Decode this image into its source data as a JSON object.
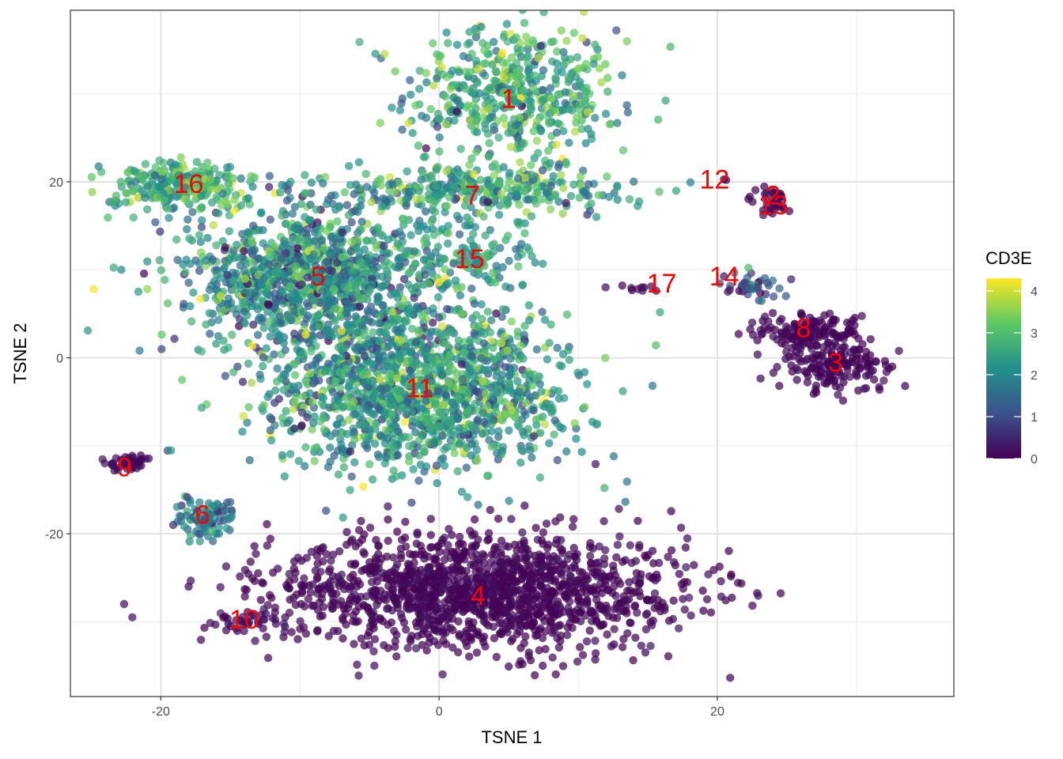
{
  "chart_data": {
    "type": "scatter",
    "title": "",
    "xlabel": "TSNE 1",
    "ylabel": "TSNE 2",
    "xlim": [
      -26.5,
      37
    ],
    "ylim": [
      -38.5,
      39.5
    ],
    "x_ticks": [
      -20,
      0,
      20
    ],
    "x_tick_labels": [
      "-20",
      "0",
      "20"
    ],
    "y_ticks": [
      -20,
      0,
      20
    ],
    "y_tick_labels": [
      "-20",
      "0",
      "20"
    ],
    "x_minor_ticks": [
      -10,
      10,
      30
    ],
    "y_minor_ticks": [
      -30,
      -10,
      10,
      30
    ],
    "grid": true,
    "color_variable": "CD3E",
    "colorbar": {
      "title": "CD3E",
      "min": 0,
      "max": 4.3,
      "ticks": [
        0,
        1,
        2,
        3,
        4
      ],
      "tick_labels": [
        "0",
        "1",
        "2",
        "3",
        "4"
      ],
      "palette": [
        "#440154",
        "#3b528b",
        "#21908c",
        "#5dc963",
        "#fde725"
      ],
      "placement": "right"
    },
    "label_color": "#ff0000",
    "clusters": [
      {
        "label": "1",
        "x": 5.2,
        "y": 30.0,
        "spread": [
          3.8,
          4.0
        ],
        "count": 500,
        "mean_expr": 2.6,
        "sd_expr": 0.7
      },
      {
        "label": "2",
        "x": 24.2,
        "y": 18.5,
        "spread": [
          0.8,
          0.4
        ],
        "count": 20,
        "mean_expr": 0.05,
        "sd_expr": 0.1
      },
      {
        "label": "3",
        "x": 28.5,
        "y": -1.0,
        "spread": [
          2.2,
          1.4
        ],
        "count": 160,
        "mean_expr": 0.05,
        "sd_expr": 0.1
      },
      {
        "label": "4",
        "x": 3.0,
        "y": -26.5,
        "spread": [
          7.5,
          3.2
        ],
        "count": 1500,
        "mean_expr": 0.05,
        "sd_expr": 0.1
      },
      {
        "label": "5",
        "x": -9.0,
        "y": 9.0,
        "spread": [
          4.5,
          4.0
        ],
        "count": 1100,
        "mean_expr": 2.1,
        "sd_expr": 0.8
      },
      {
        "label": "6",
        "x": -17.0,
        "y": -18.0,
        "spread": [
          1.4,
          1.2
        ],
        "count": 90,
        "mean_expr": 1.7,
        "sd_expr": 0.6
      },
      {
        "label": "7",
        "x": 2.5,
        "y": 19.0,
        "spread": [
          5.5,
          1.3
        ],
        "count": 320,
        "mean_expr": 2.4,
        "sd_expr": 0.8
      },
      {
        "label": "8",
        "x": 26.5,
        "y": 3.0,
        "spread": [
          1.8,
          1.0
        ],
        "count": 150,
        "mean_expr": 0.05,
        "sd_expr": 0.1
      },
      {
        "label": "9",
        "x": -22.5,
        "y": -12.0,
        "spread": [
          0.8,
          0.5
        ],
        "count": 40,
        "mean_expr": 0.1,
        "sd_expr": 0.15
      },
      {
        "label": "10",
        "x": -14.0,
        "y": -30.0,
        "spread": [
          1.5,
          0.6
        ],
        "count": 30,
        "mean_expr": 0.1,
        "sd_expr": 0.15
      },
      {
        "label": "11",
        "x": -1.5,
        "y": -3.5,
        "spread": [
          5.5,
          4.5
        ],
        "count": 1400,
        "mean_expr": 2.3,
        "sd_expr": 0.8
      },
      {
        "label": "12",
        "x": 20.5,
        "y": 20.3,
        "spread": [
          0.1,
          0.1
        ],
        "count": 2,
        "mean_expr": 0.05,
        "sd_expr": 0.05
      },
      {
        "label": "13",
        "x": 24.0,
        "y": 17.0,
        "spread": [
          0.6,
          0.4
        ],
        "count": 15,
        "mean_expr": 0.05,
        "sd_expr": 0.1
      },
      {
        "label": "14",
        "x": 22.5,
        "y": 8.0,
        "spread": [
          1.2,
          0.8
        ],
        "count": 40,
        "mean_expr": 1.0,
        "sd_expr": 0.8
      },
      {
        "label": "15",
        "x": 2.5,
        "y": 11.5,
        "spread": [
          2.0,
          2.5
        ],
        "count": 120,
        "mean_expr": 2.3,
        "sd_expr": 0.6
      },
      {
        "label": "16",
        "x": -18.5,
        "y": 19.5,
        "spread": [
          2.6,
          1.3
        ],
        "count": 260,
        "mean_expr": 2.7,
        "sd_expr": 0.6
      },
      {
        "label": "17",
        "x": 15.0,
        "y": 8.0,
        "spread": [
          1.0,
          0.3
        ],
        "count": 10,
        "mean_expr": 0.05,
        "sd_expr": 0.1
      }
    ],
    "cluster_label_positions": [
      {
        "label": "1",
        "x": 5.0,
        "y": 29.5
      },
      {
        "label": "2",
        "x": 24.0,
        "y": 18.5
      },
      {
        "label": "3",
        "x": 28.5,
        "y": -0.5
      },
      {
        "label": "4",
        "x": 2.8,
        "y": -27.0
      },
      {
        "label": "5",
        "x": -8.7,
        "y": 9.3
      },
      {
        "label": "6",
        "x": -17.0,
        "y": -17.8
      },
      {
        "label": "7",
        "x": 2.4,
        "y": 18.5
      },
      {
        "label": "8",
        "x": 26.2,
        "y": 3.4
      },
      {
        "label": "9",
        "x": -22.6,
        "y": -12.4
      },
      {
        "label": "10",
        "x": -14.0,
        "y": -29.7
      },
      {
        "label": "11",
        "x": -1.4,
        "y": -3.4
      },
      {
        "label": "12",
        "x": 19.8,
        "y": 20.3
      },
      {
        "label": "13",
        "x": 24.0,
        "y": 17.4
      },
      {
        "label": "14",
        "x": 20.5,
        "y": 9.3
      },
      {
        "label": "15",
        "x": 2.2,
        "y": 11.3
      },
      {
        "label": "16",
        "x": -18.0,
        "y": 19.8
      },
      {
        "label": "17",
        "x": 16.0,
        "y": 8.5
      }
    ]
  }
}
